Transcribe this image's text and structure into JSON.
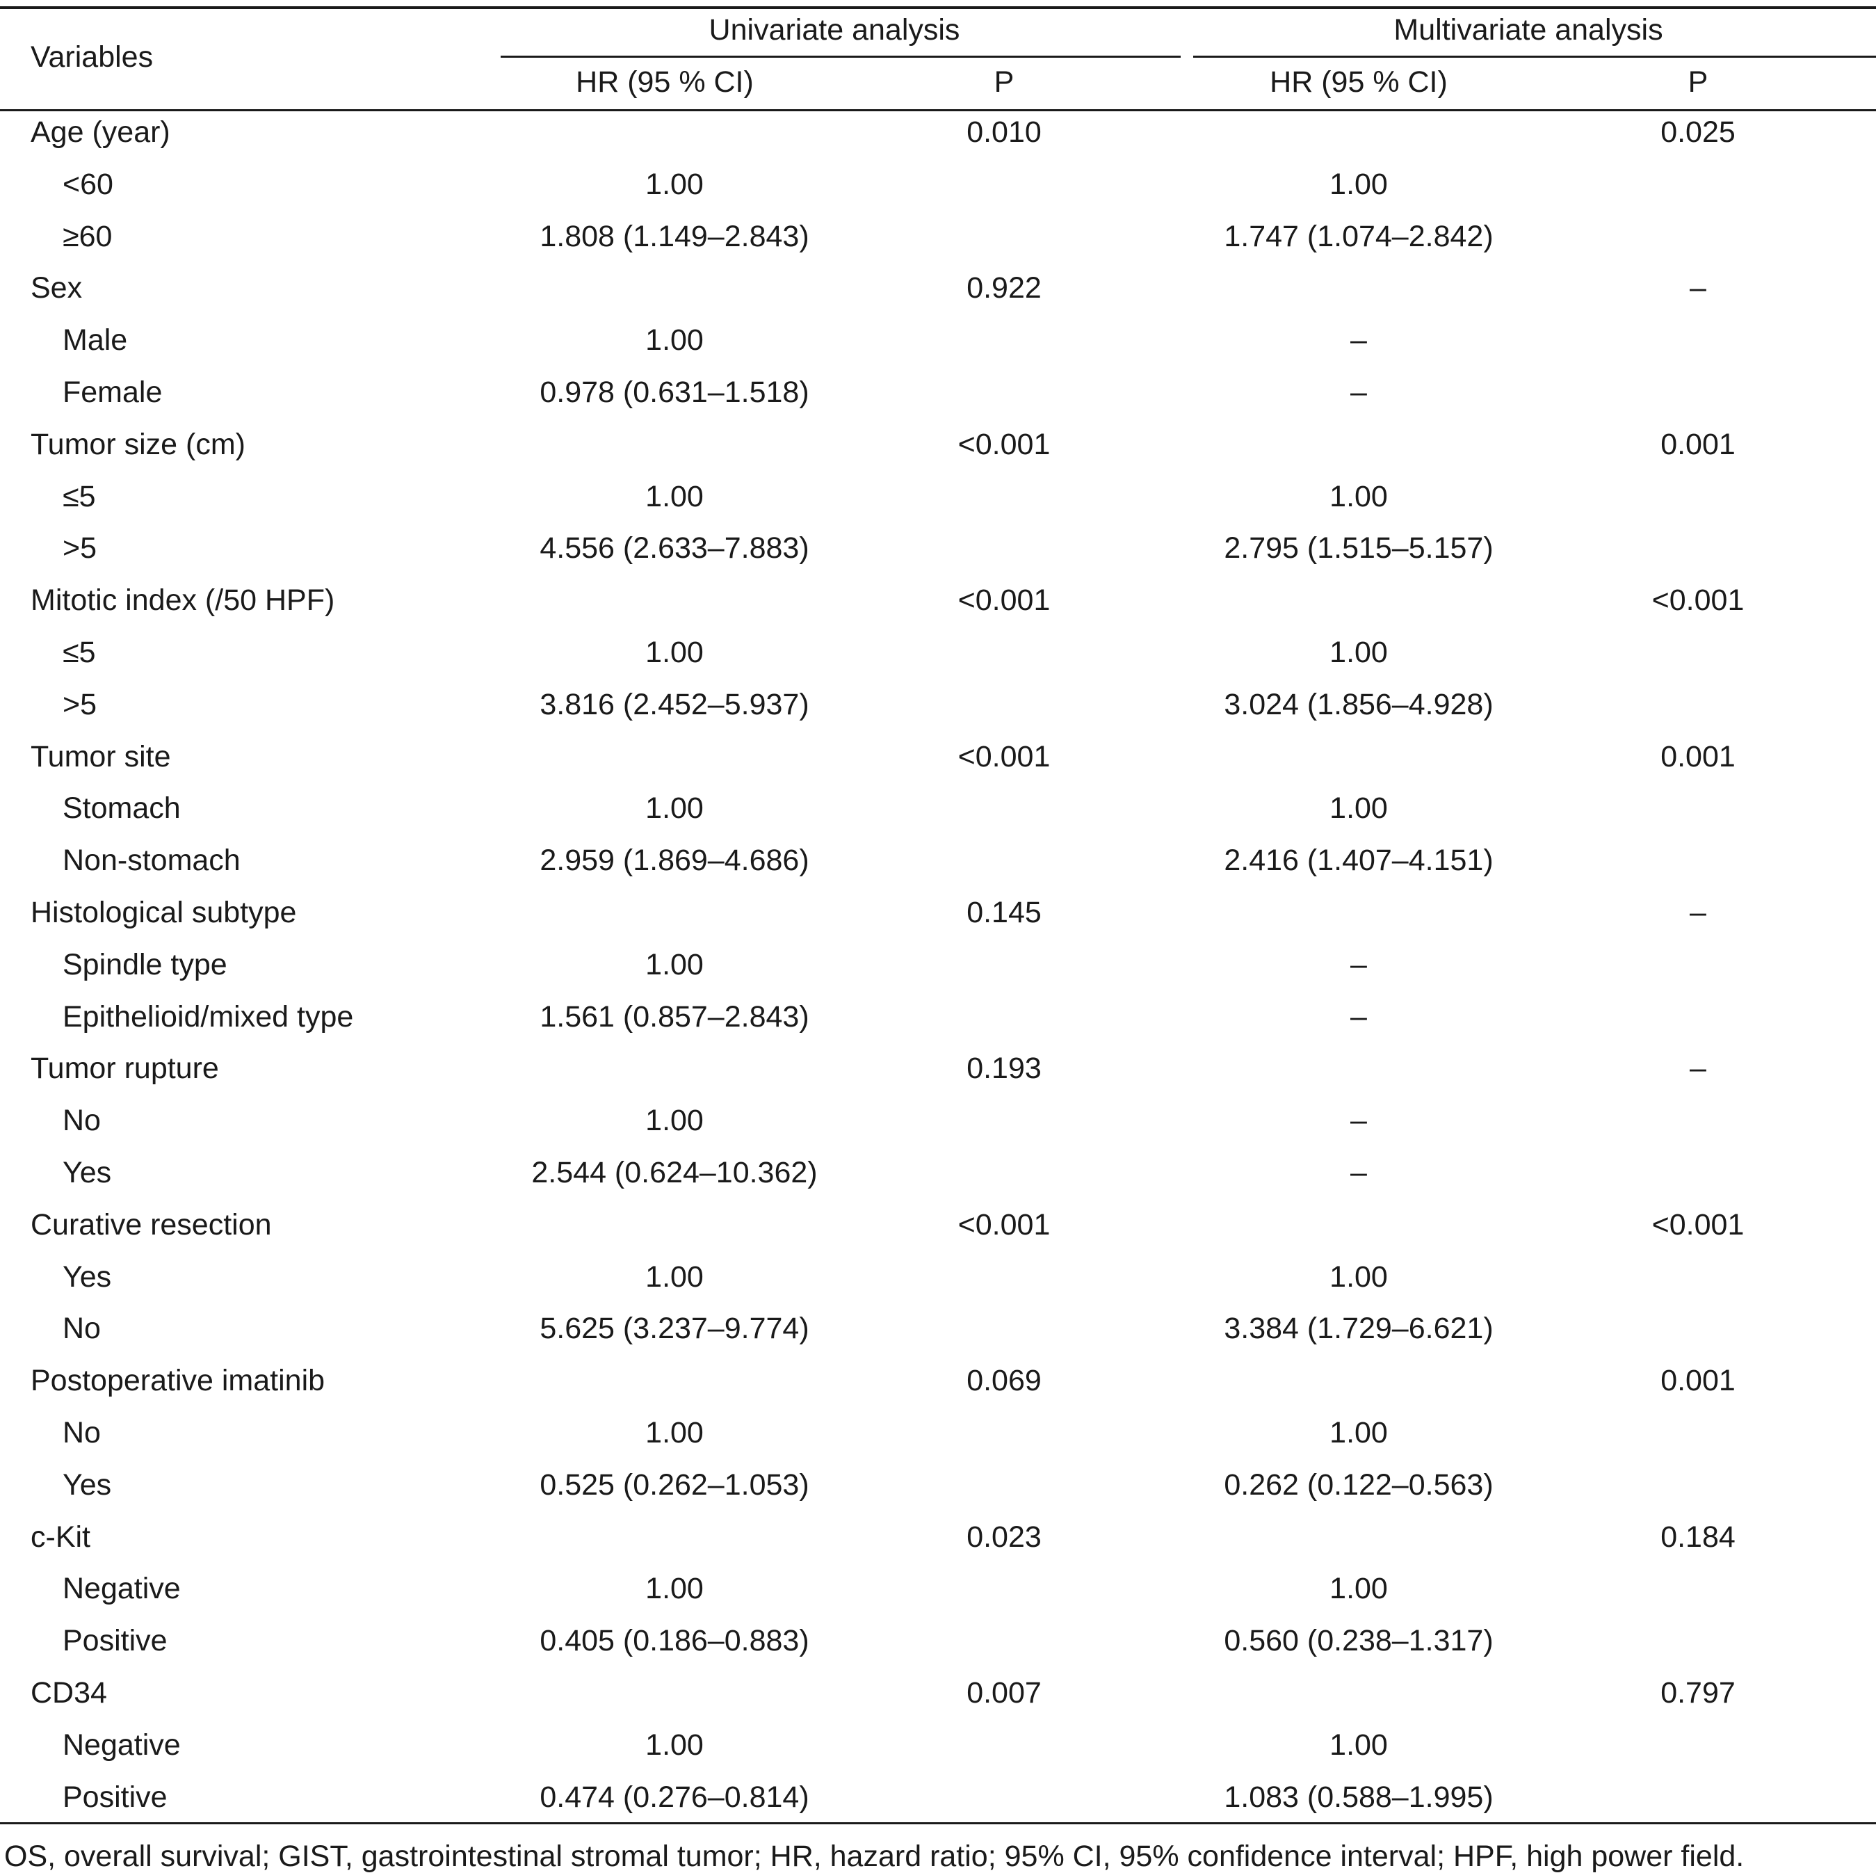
{
  "table": {
    "header": {
      "variables": "Variables",
      "univariate": "Univariate analysis",
      "multivariate": "Multivariate analysis",
      "hr": "HR (95 % CI)",
      "p": "P"
    },
    "rows": [
      {
        "label": "Age (year)",
        "indent": false,
        "uni_hr": "",
        "uni_p": "0.010",
        "multi_hr": "",
        "multi_p": "0.025"
      },
      {
        "label": "<60",
        "indent": true,
        "uni_hr": "1.00",
        "uni_p": "",
        "multi_hr": "1.00",
        "multi_p": ""
      },
      {
        "label": "≥60",
        "indent": true,
        "uni_hr": "1.808 (1.149–2.843)",
        "uni_p": "",
        "multi_hr": "1.747 (1.074–2.842)",
        "multi_p": ""
      },
      {
        "label": "Sex",
        "indent": false,
        "uni_hr": "",
        "uni_p": "0.922",
        "multi_hr": "",
        "multi_p": "–"
      },
      {
        "label": "Male",
        "indent": true,
        "uni_hr": "1.00",
        "uni_p": "",
        "multi_hr": "–",
        "multi_p": ""
      },
      {
        "label": "Female",
        "indent": true,
        "uni_hr": "0.978 (0.631–1.518)",
        "uni_p": "",
        "multi_hr": "–",
        "multi_p": ""
      },
      {
        "label": "Tumor size (cm)",
        "indent": false,
        "uni_hr": "",
        "uni_p": "<0.001",
        "multi_hr": "",
        "multi_p": "0.001"
      },
      {
        "label": "≤5",
        "indent": true,
        "uni_hr": "1.00",
        "uni_p": "",
        "multi_hr": "1.00",
        "multi_p": ""
      },
      {
        "label": ">5",
        "indent": true,
        "uni_hr": "4.556 (2.633–7.883)",
        "uni_p": "",
        "multi_hr": "2.795 (1.515–5.157)",
        "multi_p": ""
      },
      {
        "label": "Mitotic index (/50 HPF)",
        "indent": false,
        "uni_hr": "",
        "uni_p": "<0.001",
        "multi_hr": "",
        "multi_p": "<0.001"
      },
      {
        "label": "≤5",
        "indent": true,
        "uni_hr": "1.00",
        "uni_p": "",
        "multi_hr": "1.00",
        "multi_p": ""
      },
      {
        "label": ">5",
        "indent": true,
        "uni_hr": "3.816 (2.452–5.937)",
        "uni_p": "",
        "multi_hr": "3.024 (1.856–4.928)",
        "multi_p": ""
      },
      {
        "label": "Tumor site",
        "indent": false,
        "uni_hr": "",
        "uni_p": "<0.001",
        "multi_hr": "",
        "multi_p": "0.001"
      },
      {
        "label": "Stomach",
        "indent": true,
        "uni_hr": "1.00",
        "uni_p": "",
        "multi_hr": "1.00",
        "multi_p": ""
      },
      {
        "label": "Non-stomach",
        "indent": true,
        "uni_hr": "2.959 (1.869–4.686)",
        "uni_p": "",
        "multi_hr": "2.416 (1.407–4.151)",
        "multi_p": ""
      },
      {
        "label": "Histological subtype",
        "indent": false,
        "uni_hr": "",
        "uni_p": "0.145",
        "multi_hr": "",
        "multi_p": "–"
      },
      {
        "label": "Spindle type",
        "indent": true,
        "uni_hr": "1.00",
        "uni_p": "",
        "multi_hr": "–",
        "multi_p": ""
      },
      {
        "label": "Epithelioid/mixed type",
        "indent": true,
        "uni_hr": "1.561 (0.857–2.843)",
        "uni_p": "",
        "multi_hr": "–",
        "multi_p": ""
      },
      {
        "label": "Tumor rupture",
        "indent": false,
        "uni_hr": "",
        "uni_p": "0.193",
        "multi_hr": "",
        "multi_p": "–"
      },
      {
        "label": "No",
        "indent": true,
        "uni_hr": "1.00",
        "uni_p": "",
        "multi_hr": "–",
        "multi_p": ""
      },
      {
        "label": "Yes",
        "indent": true,
        "uni_hr": "2.544 (0.624–10.362)",
        "uni_p": "",
        "multi_hr": "–",
        "multi_p": ""
      },
      {
        "label": "Curative resection",
        "indent": false,
        "uni_hr": "",
        "uni_p": "<0.001",
        "multi_hr": "",
        "multi_p": "<0.001"
      },
      {
        "label": "Yes",
        "indent": true,
        "uni_hr": "1.00",
        "uni_p": "",
        "multi_hr": "1.00",
        "multi_p": ""
      },
      {
        "label": "No",
        "indent": true,
        "uni_hr": "5.625 (3.237–9.774)",
        "uni_p": "",
        "multi_hr": "3.384 (1.729–6.621)",
        "multi_p": ""
      },
      {
        "label": "Postoperative imatinib",
        "indent": false,
        "uni_hr": "",
        "uni_p": "0.069",
        "multi_hr": "",
        "multi_p": "0.001"
      },
      {
        "label": "No",
        "indent": true,
        "uni_hr": "1.00",
        "uni_p": "",
        "multi_hr": "1.00",
        "multi_p": ""
      },
      {
        "label": "Yes",
        "indent": true,
        "uni_hr": "0.525 (0.262–1.053)",
        "uni_p": "",
        "multi_hr": "0.262 (0.122–0.563)",
        "multi_p": ""
      },
      {
        "label": "c-Kit",
        "indent": false,
        "uni_hr": "",
        "uni_p": "0.023",
        "multi_hr": "",
        "multi_p": "0.184"
      },
      {
        "label": "Negative",
        "indent": true,
        "uni_hr": "1.00",
        "uni_p": "",
        "multi_hr": "1.00",
        "multi_p": ""
      },
      {
        "label": "Positive",
        "indent": true,
        "uni_hr": "0.405 (0.186–0.883)",
        "uni_p": "",
        "multi_hr": "0.560 (0.238–1.317)",
        "multi_p": ""
      },
      {
        "label": "CD34",
        "indent": false,
        "uni_hr": "",
        "uni_p": "0.007",
        "multi_hr": "",
        "multi_p": "0.797"
      },
      {
        "label": "Negative",
        "indent": true,
        "uni_hr": "1.00",
        "uni_p": "",
        "multi_hr": "1.00",
        "multi_p": ""
      },
      {
        "label": "Positive",
        "indent": true,
        "uni_hr": "0.474 (0.276–0.814)",
        "uni_p": "",
        "multi_hr": "1.083 (0.588–1.995)",
        "multi_p": ""
      }
    ]
  },
  "footnote": "OS, overall survival; GIST, gastrointestinal stromal tumor; HR, hazard ratio; 95% CI, 95% confidence interval; HPF, high power field."
}
